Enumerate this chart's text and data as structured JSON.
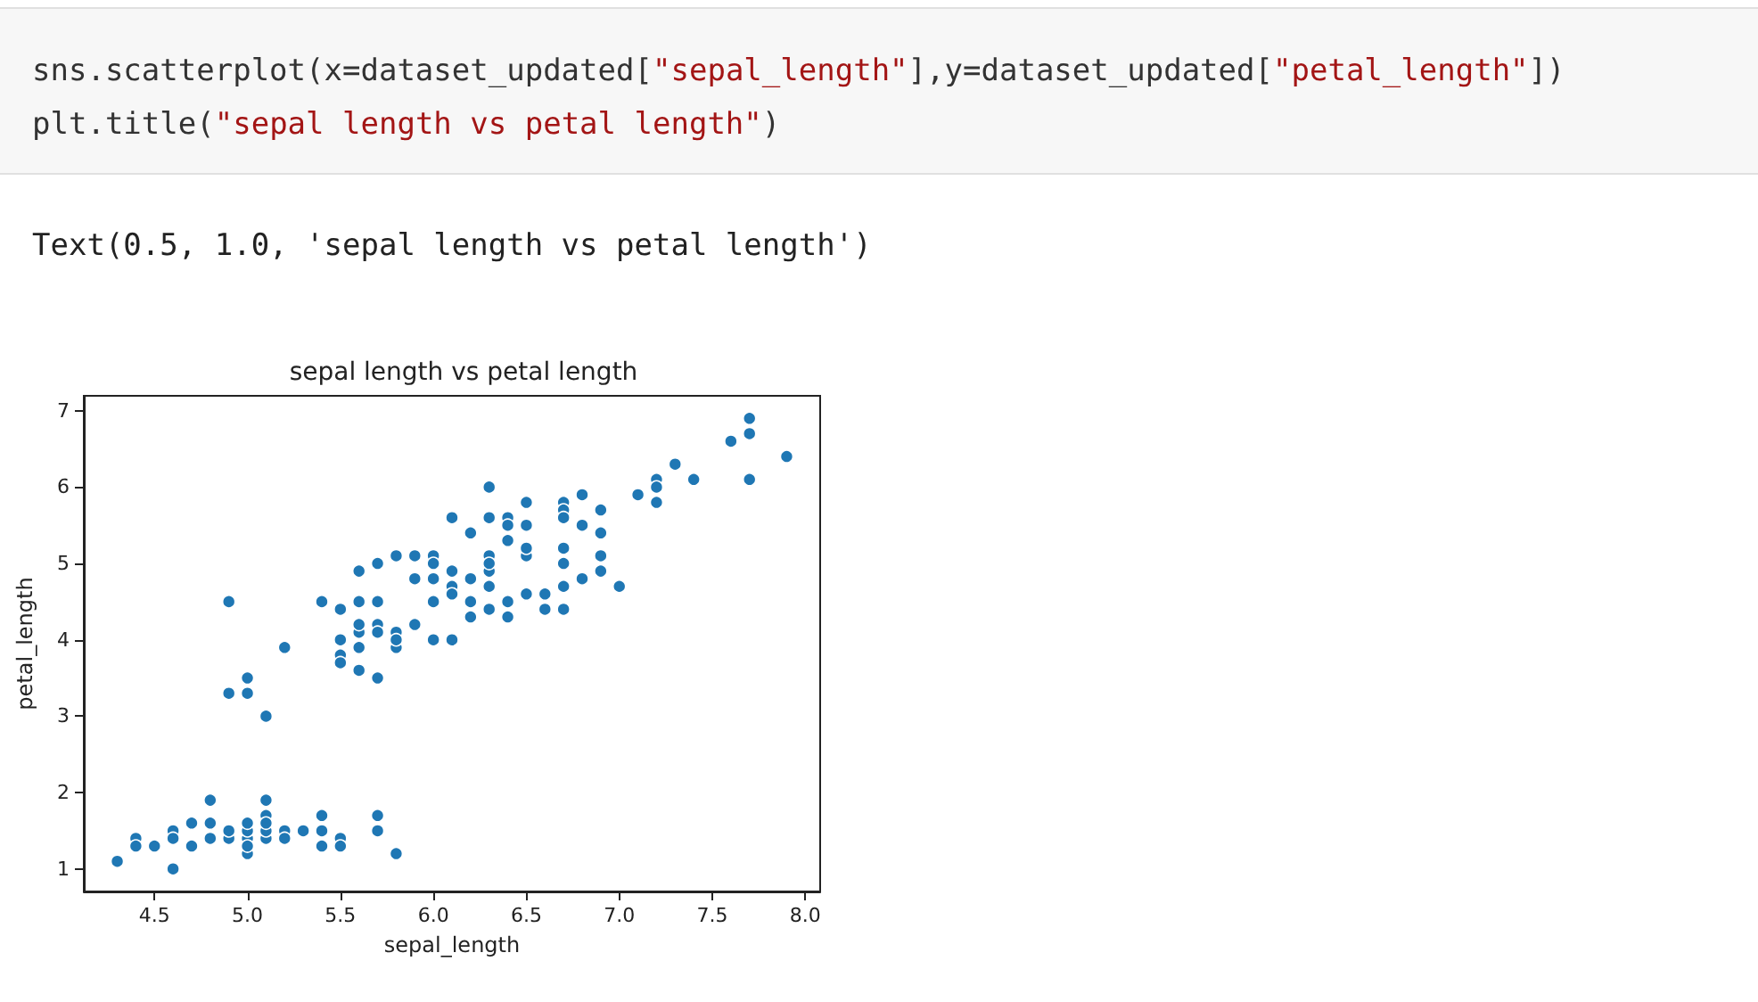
{
  "chart_data": {
    "type": "scatter",
    "title": "sepal length vs petal length",
    "xlabel": "sepal_length",
    "ylabel": "petal_length",
    "annotations": [
      "sns.scatterplot(x=dataset_updated[\"sepal_length\"],y=dataset_updated[\"petal_length\"])",
      "plt.title(\"sepal length vs petal length\")",
      "Text(0.5, 1.0, 'sepal length vs petal length')"
    ],
    "x": [
      5.1,
      4.9,
      4.7,
      4.6,
      5.0,
      5.4,
      4.6,
      5.0,
      4.4,
      4.9,
      5.4,
      4.8,
      4.8,
      4.3,
      5.8,
      5.7,
      5.4,
      5.7,
      5.1,
      4.6,
      5.1,
      4.8,
      5.0,
      5.2,
      5.2,
      4.7,
      5.5,
      5.0,
      5.5,
      4.4,
      5.0,
      4.5,
      5.1,
      5.1,
      5.3,
      7.0,
      6.4,
      6.9,
      5.5,
      6.5,
      5.7,
      6.3,
      4.9,
      6.6,
      5.2,
      5.0,
      5.9,
      6.0,
      6.1,
      5.6,
      6.7,
      5.6,
      5.8,
      6.2,
      5.6,
      5.9,
      6.1,
      6.3,
      6.4,
      6.6,
      6.8,
      6.7,
      6.0,
      5.7,
      5.5,
      5.5,
      5.8,
      6.0,
      5.4,
      6.7,
      6.3,
      5.6,
      5.5,
      6.1,
      5.8,
      5.0,
      5.6,
      5.7,
      6.2,
      5.1,
      5.7,
      6.3,
      5.8,
      7.1,
      6.3,
      6.5,
      7.6,
      4.9,
      7.3,
      6.7,
      7.2,
      6.5,
      6.4,
      6.8,
      5.7,
      6.5,
      7.7,
      7.7,
      6.0,
      6.9,
      5.6,
      6.7,
      7.2,
      6.2,
      6.1,
      6.4,
      7.2,
      7.4,
      7.9,
      6.3,
      6.1,
      7.7,
      6.4,
      6.0,
      6.9,
      6.7,
      6.9,
      6.8,
      6.7,
      6.3,
      6.5,
      6.2,
      5.9
    ],
    "series": [
      {
        "color": "#1f77b4",
        "values": [
          1.4,
          1.4,
          1.3,
          1.5,
          1.4,
          1.7,
          1.4,
          1.5,
          1.4,
          1.5,
          1.5,
          1.6,
          1.4,
          1.1,
          1.2,
          1.5,
          1.3,
          1.7,
          1.5,
          1.0,
          1.7,
          1.9,
          1.6,
          1.5,
          1.4,
          1.6,
          1.4,
          1.2,
          1.3,
          1.3,
          1.3,
          1.3,
          1.9,
          1.6,
          1.5,
          4.7,
          4.5,
          4.9,
          4.0,
          4.6,
          4.5,
          4.7,
          3.3,
          4.6,
          3.9,
          3.5,
          4.2,
          4.0,
          4.7,
          3.6,
          4.4,
          4.5,
          4.1,
          4.5,
          3.9,
          4.8,
          4.0,
          4.9,
          4.3,
          4.4,
          4.8,
          5.0,
          4.5,
          3.5,
          3.8,
          3.7,
          3.9,
          5.1,
          4.5,
          4.7,
          4.4,
          4.1,
          4.4,
          4.6,
          4.0,
          3.3,
          4.2,
          4.2,
          4.3,
          3.0,
          4.1,
          6.0,
          5.1,
          5.9,
          5.6,
          5.8,
          6.6,
          4.5,
          6.3,
          5.8,
          6.1,
          5.1,
          5.3,
          5.5,
          5.0,
          5.5,
          6.7,
          6.9,
          5.0,
          5.7,
          4.9,
          5.7,
          6.0,
          4.8,
          4.9,
          5.6,
          5.8,
          6.1,
          6.4,
          5.1,
          5.6,
          6.1,
          5.5,
          4.8,
          5.4,
          5.6,
          5.1,
          5.9,
          5.2,
          5.0,
          5.2,
          5.4,
          5.1
        ]
      }
    ],
    "xlim": [
      4.12,
      8.08
    ],
    "xticks": [
      4.5,
      {
        "value": 5,
        "label": "5.0"
      },
      5.5,
      {
        "value": 6,
        "label": "6.0"
      },
      6.5,
      {
        "value": 7,
        "label": "7.0"
      },
      7.5,
      {
        "value": 8,
        "label": "8.0"
      }
    ],
    "ylim": [
      0.705,
      7.195
    ],
    "yticks": [
      1,
      2,
      3,
      4,
      5,
      6,
      7
    ],
    "marker": "circle",
    "grid": false
  }
}
